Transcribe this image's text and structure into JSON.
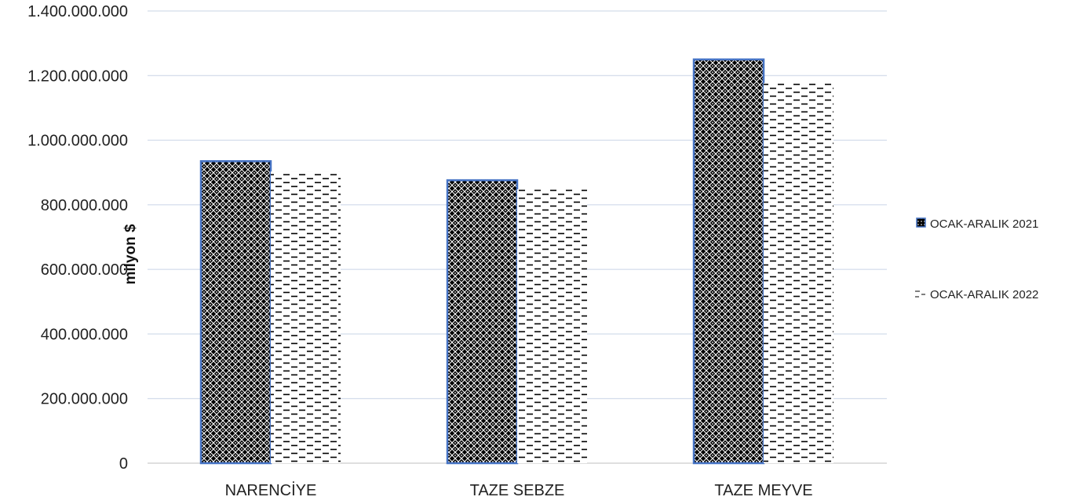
{
  "chart_data": {
    "type": "bar",
    "categories": [
      "NARENCİYE",
      "TAZE SEBZE",
      "TAZE MEYVE"
    ],
    "series": [
      {
        "name": "OCAK-ARALIK 2021",
        "values": [
          935000000,
          876000000,
          1250000000
        ],
        "pattern": "dense-crosshatch",
        "border_color": "#4472c4"
      },
      {
        "name": "OCAK-ARALIK 2022",
        "values": [
          903000000,
          848000000,
          1177000000
        ],
        "pattern": "dashed-lines",
        "border_color": ""
      }
    ],
    "title": "",
    "xlabel": "",
    "ylabel": "milyon $",
    "ylim": [
      0,
      1400000000
    ],
    "yticks": [
      0,
      200000000,
      400000000,
      600000000,
      800000000,
      1000000000,
      1200000000,
      1400000000
    ],
    "ytick_labels": [
      "0",
      "200.000.000",
      "400.000.000",
      "600.000.000",
      "800.000.000",
      "1.000.000.000",
      "1.200.000.000",
      "1.400.000.000"
    ],
    "grid": true,
    "legend_position": "right"
  }
}
